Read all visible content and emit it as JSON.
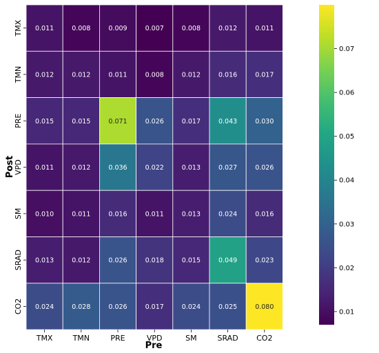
{
  "chart_data": {
    "type": "heatmap",
    "title": "",
    "xlabel": "Pre",
    "ylabel": "Post",
    "x_categories": [
      "TMX",
      "TMN",
      "PRE",
      "VPD",
      "SM",
      "SRAD",
      "CO2"
    ],
    "y_categories": [
      "TMX",
      "TMN",
      "PRE",
      "VPD",
      "SM",
      "SRAD",
      "CO2"
    ],
    "values": [
      [
        0.011,
        0.008,
        0.009,
        0.007,
        0.008,
        0.012,
        0.011
      ],
      [
        0.012,
        0.012,
        0.011,
        0.008,
        0.012,
        0.016,
        0.017
      ],
      [
        0.015,
        0.015,
        0.071,
        0.026,
        0.017,
        0.043,
        0.03
      ],
      [
        0.011,
        0.012,
        0.036,
        0.022,
        0.013,
        0.027,
        0.026
      ],
      [
        0.01,
        0.011,
        0.016,
        0.011,
        0.013,
        0.024,
        0.016
      ],
      [
        0.013,
        0.012,
        0.026,
        0.018,
        0.015,
        0.049,
        0.023
      ],
      [
        0.024,
        0.028,
        0.026,
        0.017,
        0.024,
        0.025,
        0.08
      ]
    ],
    "value_labels": [
      [
        "0.011",
        "0.008",
        "0.009",
        "0.007",
        "0.008",
        "0.012",
        "0.011"
      ],
      [
        "0.012",
        "0.012",
        "0.011",
        "0.008",
        "0.012",
        "0.016",
        "0.017"
      ],
      [
        "0.015",
        "0.015",
        "0.071",
        "0.026",
        "0.017",
        "0.043",
        "0.030"
      ],
      [
        "0.011",
        "0.012",
        "0.036",
        "0.022",
        "0.013",
        "0.027",
        "0.026"
      ],
      [
        "0.010",
        "0.011",
        "0.016",
        "0.011",
        "0.013",
        "0.024",
        "0.016"
      ],
      [
        "0.013",
        "0.012",
        "0.026",
        "0.018",
        "0.015",
        "0.049",
        "0.023"
      ],
      [
        "0.024",
        "0.028",
        "0.026",
        "0.017",
        "0.024",
        "0.025",
        "0.080"
      ]
    ],
    "colormap": "viridis",
    "color_range": [
      0.007,
      0.08
    ],
    "colorbar_ticks": [
      0.01,
      0.02,
      0.03,
      0.04,
      0.05,
      0.06,
      0.07
    ],
    "colorbar_tick_labels": [
      "0.01",
      "0.02",
      "0.03",
      "0.04",
      "0.05",
      "0.06",
      "0.07"
    ],
    "cell_border_color": "#ffffff",
    "text_color_dark_cells": "#ffffff",
    "text_color_light_cells": "#262626"
  }
}
